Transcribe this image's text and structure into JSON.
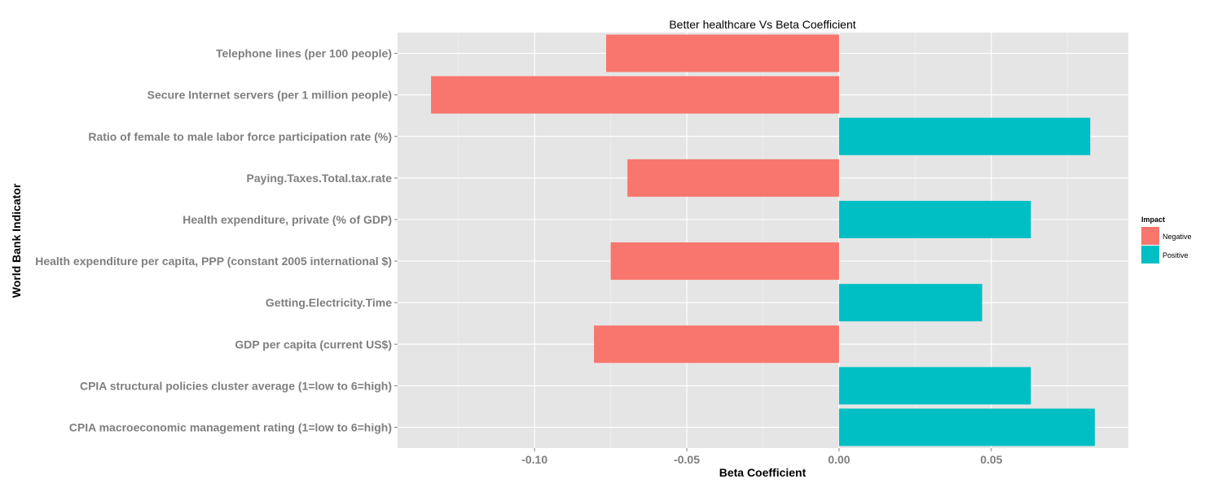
{
  "chart_data": {
    "type": "bar",
    "orientation": "horizontal",
    "title": "Better healthcare Vs Beta Coefficient",
    "xlabel": "Beta Coefficient",
    "ylabel": "World Bank Indicator",
    "xlim": [
      -0.145,
      0.095
    ],
    "x_ticks": [
      -0.1,
      -0.05,
      0.0,
      0.05
    ],
    "x_tick_labels": [
      "-0.10",
      "-0.05",
      "0.00",
      "0.05"
    ],
    "grid": true,
    "legend": {
      "title": "Impact",
      "placement": "right",
      "entries": [
        {
          "name": "Negative",
          "color": "#F8766D"
        },
        {
          "name": "Positive",
          "color": "#00BFC4"
        }
      ]
    },
    "categories": [
      "Telephone lines (per 100 people)",
      "Secure Internet servers (per 1 million people)",
      "Ratio of female to male labor force participation rate (%)",
      "Paying.Taxes.Total.tax.rate",
      "Health expenditure, private (% of GDP)",
      "Health expenditure per capita, PPP (constant 2005 international $)",
      "Getting.Electricity.Time",
      "GDP per capita (current US$)",
      "CPIA structural policies cluster average (1=low to 6=high)",
      "CPIA macroeconomic management rating (1=low to 6=high)"
    ],
    "values": [
      -0.0765,
      -0.134,
      0.0825,
      -0.0695,
      0.063,
      -0.075,
      0.047,
      -0.0805,
      0.063,
      0.084
    ],
    "impact": [
      "Negative",
      "Negative",
      "Positive",
      "Negative",
      "Positive",
      "Negative",
      "Positive",
      "Negative",
      "Positive",
      "Positive"
    ]
  }
}
